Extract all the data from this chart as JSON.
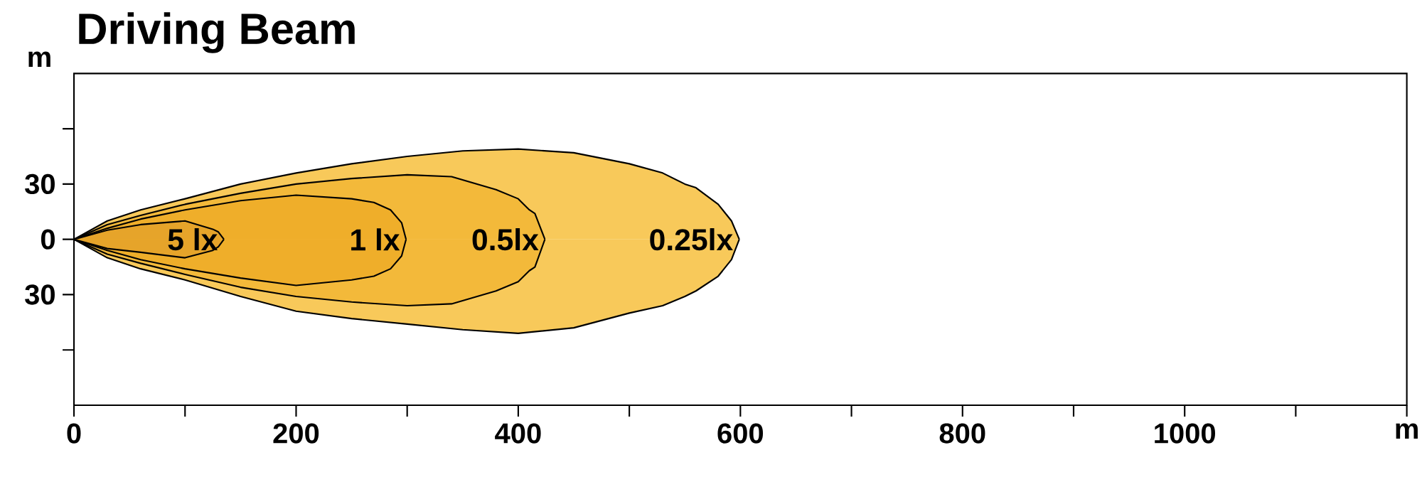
{
  "chart_data": {
    "type": "area",
    "title": "Driving Beam",
    "xlabel": "m",
    "ylabel": "m",
    "xlim": [
      0,
      1200
    ],
    "ylim": [
      -90,
      90
    ],
    "xticks": [
      0,
      {
        "value": 100,
        "label": null
      },
      200,
      {
        "value": 300,
        "label": null
      },
      400,
      {
        "value": 500,
        "label": null
      },
      600,
      {
        "value": 700,
        "label": null
      },
      800,
      {
        "value": 900,
        "label": null
      },
      1000,
      {
        "value": 1100,
        "label": null
      },
      {
        "value": 1200,
        "label": null
      }
    ],
    "yticks": [
      {
        "value": -60,
        "label": null
      },
      {
        "value": -30,
        "label": "30"
      },
      0,
      30,
      {
        "value": 60,
        "label": null
      }
    ],
    "series": [
      {
        "name": "0.25lx",
        "color": "#f8c95a",
        "x": [
          0,
          30,
          60,
          100,
          150,
          200,
          250,
          300,
          350,
          400,
          450,
          500,
          530,
          550,
          560,
          580,
          592,
          599
        ],
        "values": [
          0,
          10,
          16,
          22,
          30,
          36,
          41,
          45,
          48,
          49,
          47,
          41,
          36,
          30,
          28,
          19,
          10,
          0
        ]
      },
      {
        "color": "#f8c95a",
        "x": [
          0,
          30,
          60,
          100,
          150,
          200,
          250,
          300,
          350,
          400,
          450,
          500,
          530,
          550,
          560,
          580,
          592,
          599
        ],
        "values": [
          0,
          -10,
          -16,
          -22,
          -31,
          -39,
          -43,
          -46,
          -49,
          -51,
          -48,
          -40,
          -36,
          -31,
          -28,
          -20,
          -11,
          0
        ]
      },
      {
        "name": "0.5lx",
        "color": "#f3b93a",
        "x": [
          0,
          30,
          60,
          100,
          150,
          200,
          250,
          300,
          340,
          380,
          400,
          410,
          415,
          424
        ],
        "values": [
          0,
          8,
          13,
          19,
          25,
          30,
          33,
          35,
          34,
          27,
          22,
          16,
          14,
          0
        ]
      },
      {
        "color": "#f3b93a",
        "x": [
          0,
          30,
          60,
          100,
          150,
          200,
          250,
          300,
          340,
          380,
          400,
          410,
          415,
          424
        ],
        "values": [
          0,
          -8,
          -13,
          -19,
          -26,
          -31,
          -34,
          -36,
          -35,
          -28,
          -23,
          -17,
          -15,
          0
        ]
      },
      {
        "name": "1 lx",
        "color": "#efae2a",
        "x": [
          0,
          30,
          60,
          100,
          150,
          200,
          250,
          270,
          285,
          295,
          299
        ],
        "values": [
          0,
          6,
          11,
          16,
          21,
          24,
          22,
          20,
          16,
          9,
          0
        ]
      },
      {
        "color": "#efae2a",
        "x": [
          0,
          30,
          60,
          100,
          150,
          200,
          250,
          270,
          285,
          295,
          299
        ],
        "values": [
          0,
          -6,
          -11,
          -16,
          -21,
          -25,
          -22,
          -20,
          -16,
          -9,
          0
        ]
      },
      {
        "name": "5 lx",
        "color": "#e6a42a",
        "x": [
          0,
          30,
          60,
          100,
          125,
          130,
          135
        ],
        "values": [
          0,
          5,
          8,
          10,
          5.5,
          4,
          0
        ]
      },
      {
        "color": "#e6a42a",
        "x": [
          0,
          30,
          60,
          100,
          125,
          130,
          135
        ],
        "values": [
          0,
          -5,
          -7,
          -10,
          -6,
          -4,
          0
        ]
      }
    ]
  }
}
